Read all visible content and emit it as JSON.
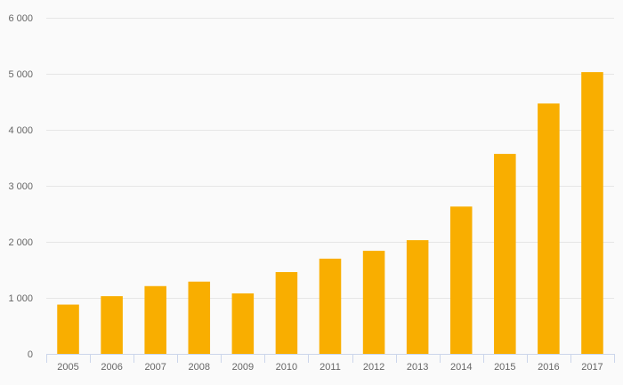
{
  "chart_data": {
    "type": "bar",
    "title": "",
    "xlabel": "",
    "ylabel": "",
    "categories": [
      "2005",
      "2006",
      "2007",
      "2008",
      "2009",
      "2010",
      "2011",
      "2012",
      "2013",
      "2014",
      "2015",
      "2016",
      "2017"
    ],
    "values": [
      880,
      1030,
      1210,
      1290,
      1080,
      1460,
      1700,
      1840,
      2030,
      2630,
      3570,
      4470,
      5030
    ],
    "ylim": [
      0,
      6000
    ],
    "yticks": [
      0,
      1000,
      2000,
      3000,
      4000,
      5000,
      6000
    ],
    "ytick_labels": [
      "0",
      "1 000",
      "2 000",
      "3 000",
      "4 000",
      "5 000",
      "6 000"
    ],
    "grid": true,
    "legend": "none",
    "bar_color": "#f9ae00",
    "grid_color": "#e6e6e6",
    "axis_color": "#ccd6eb",
    "text_color": "#666666"
  }
}
